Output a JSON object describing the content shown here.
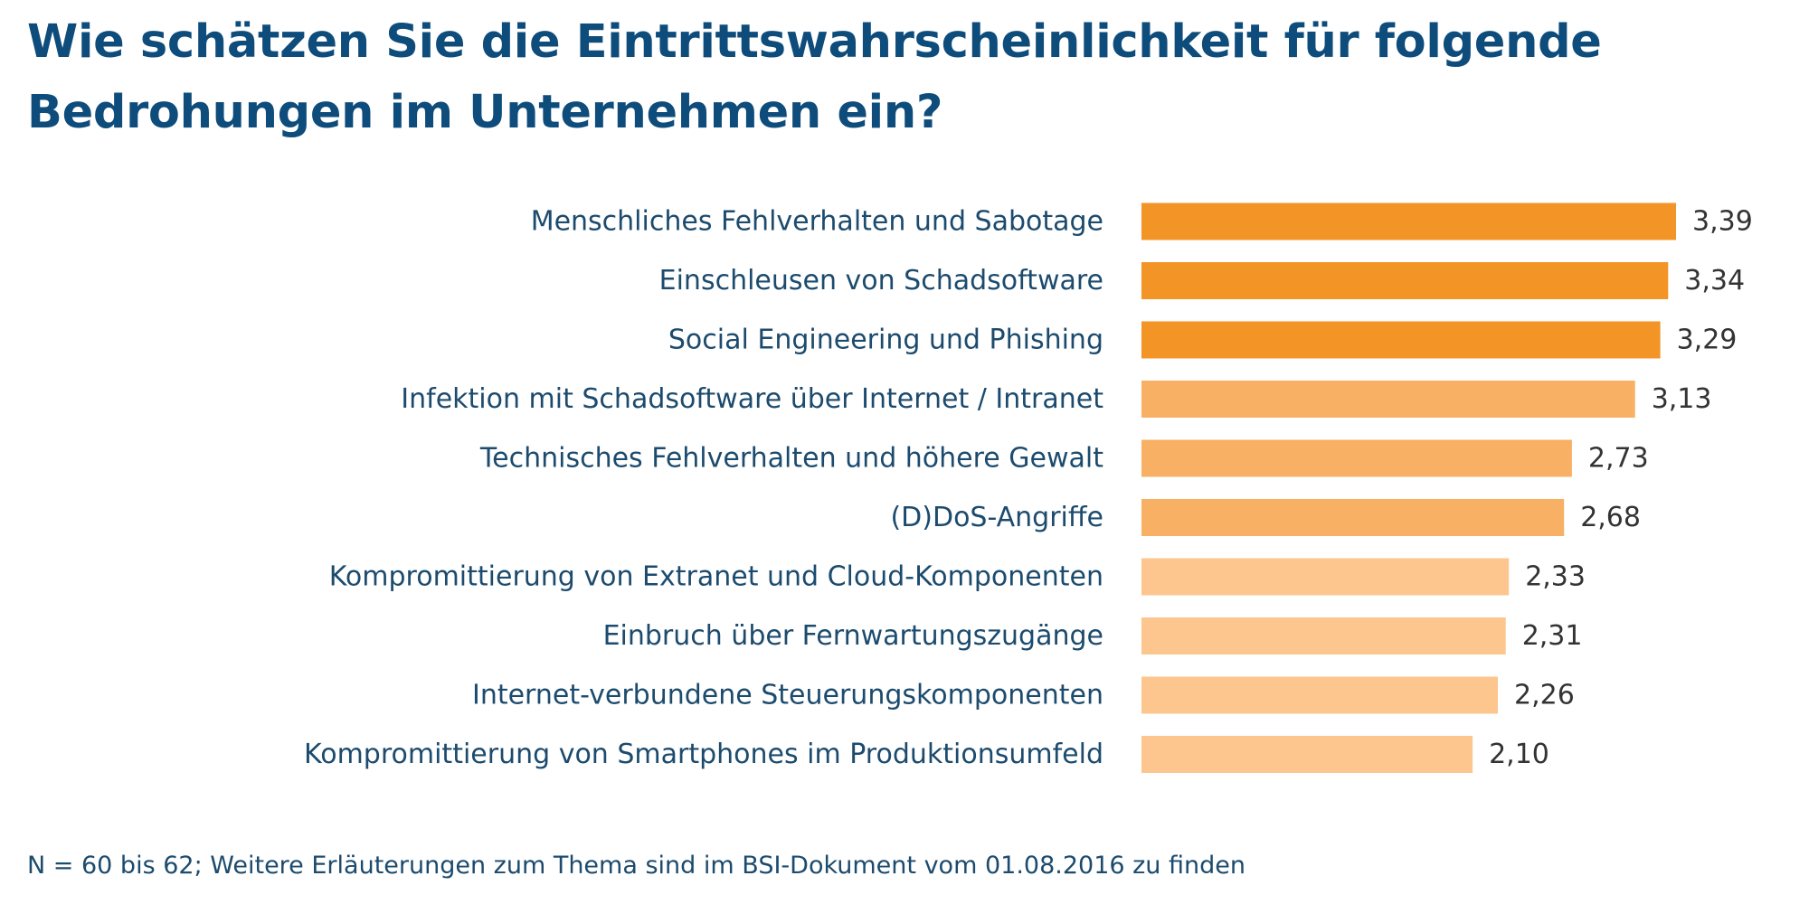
{
  "title": "Wie schätzen Sie die Eintrittswahrscheinlichkeit für folgende Bedrohungen im Unternehmen ein?",
  "footnote": "N = 60 bis 62; Weitere Erläuterungen zum Thema sind im BSI-Dokument vom 01.08.2016 zu finden",
  "colors": {
    "title": "#0e4c7c",
    "label_text": "#1c4b6e",
    "value_text": "#333333",
    "bar_high": "#f39426",
    "bar_mid": "#f7b064",
    "bar_low": "#fcc68e"
  },
  "chart_data": {
    "type": "bar",
    "orientation": "horizontal",
    "categories": [
      "Menschliches Fehlverhalten und Sabotage",
      "Einschleusen von Schadsoftware",
      "Social Engineering und Phishing",
      "Infektion mit Schadsoftware über Internet / Intranet",
      "Technisches Fehlverhalten und höhere Gewalt",
      "(D)DoS-Angriffe",
      "Kompromittierung von Extranet und Cloud-Komponenten",
      "Einbruch über Fernwartungszugänge",
      "Internet-verbundene Steuerungskomponenten",
      "Kompromittierung von Smartphones im Produktionsumfeld"
    ],
    "values": [
      3.39,
      3.34,
      3.29,
      3.13,
      2.73,
      2.68,
      2.33,
      2.31,
      2.26,
      2.1
    ],
    "value_labels": [
      "3,39",
      "3,34",
      "3,29",
      "3,13",
      "2,73",
      "2,68",
      "2,33",
      "2,31",
      "2,26",
      "2,10"
    ],
    "color_groups": [
      "high",
      "high",
      "high",
      "mid",
      "mid",
      "mid",
      "low",
      "low",
      "low",
      "low"
    ],
    "xlim": [
      0,
      3.39
    ],
    "grid": false,
    "legend": false
  }
}
